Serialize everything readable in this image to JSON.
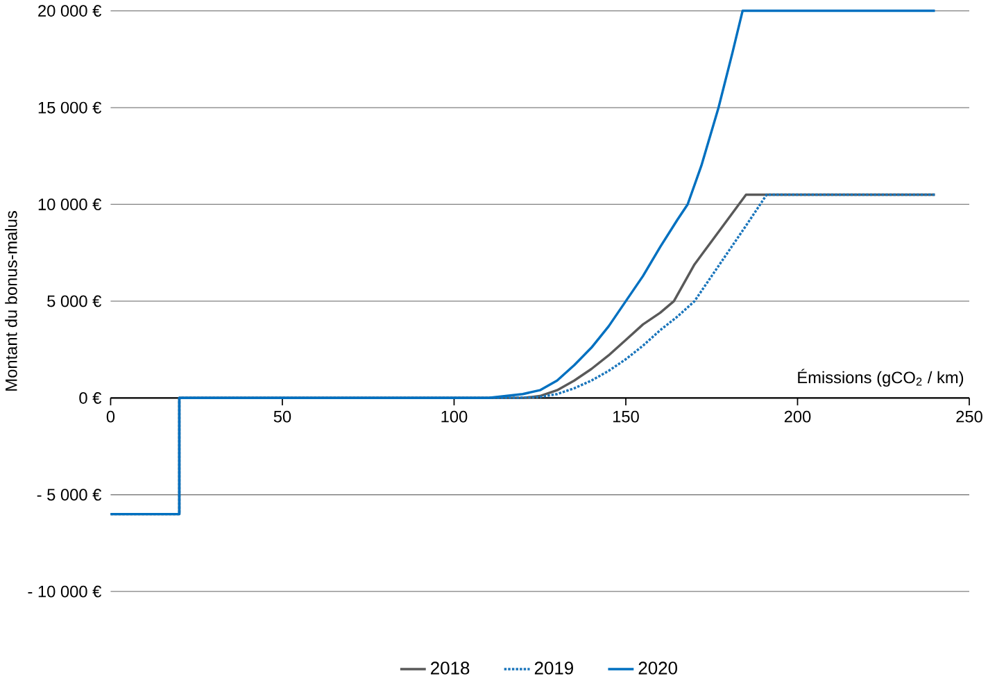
{
  "chart_data": {
    "type": "line",
    "xlabel": "Émissions (gCO$_{2}$ / km)",
    "ylabel": "Montant du bonus-malus",
    "xlim": [
      0,
      250
    ],
    "ylim": [
      -10000,
      20000
    ],
    "xticks": [
      0,
      50,
      100,
      150,
      200,
      250
    ],
    "yticks": [
      {
        "value": -10000,
        "label": "- 10 000 €"
      },
      {
        "value": -5000,
        "label": "- 5 000 €"
      },
      {
        "value": 0,
        "label": "0 €"
      },
      {
        "value": 5000,
        "label": "5 000 €"
      },
      {
        "value": 10000,
        "label": "10 000 €"
      },
      {
        "value": 15000,
        "label": "15 000 €"
      },
      {
        "value": 20000,
        "label": "20 000 €"
      }
    ],
    "grid": "y",
    "legend": "bottom",
    "series": [
      {
        "name": "2018",
        "color": "#595959",
        "line_style": "solid",
        "x": [
          0,
          20,
          20,
          120,
          125,
          130,
          135,
          140,
          145,
          150,
          155,
          160,
          164,
          170,
          175,
          180,
          185,
          240
        ],
        "values": [
          -6000,
          -6000,
          0,
          0,
          100,
          400,
          900,
          1500,
          2200,
          3000,
          3800,
          4400,
          5000,
          6900,
          8100,
          9300,
          10500,
          10500
        ]
      },
      {
        "name": "2019",
        "color": "#1a75bb",
        "line_style": "dotted",
        "x": [
          0,
          20,
          20,
          117,
          125,
          130,
          135,
          140,
          145,
          150,
          155,
          160,
          165,
          170,
          175,
          180,
          185,
          191,
          240
        ],
        "values": [
          -6000,
          -6000,
          0,
          0,
          50,
          200,
          500,
          900,
          1400,
          2000,
          2700,
          3500,
          4200,
          5000,
          6300,
          7600,
          8900,
          10500,
          10500
        ]
      },
      {
        "name": "2020",
        "color": "#0070c0",
        "line_style": "solid",
        "x": [
          0,
          20,
          20,
          110,
          115,
          120,
          125,
          130,
          135,
          140,
          145,
          150,
          155,
          160,
          165,
          168,
          172,
          177,
          181,
          184,
          240
        ],
        "values": [
          -6000,
          -6000,
          0,
          0,
          100,
          200,
          400,
          900,
          1700,
          2600,
          3700,
          5000,
          6300,
          7800,
          9200,
          10000,
          12000,
          15000,
          17800,
          20000,
          20000
        ]
      }
    ]
  }
}
